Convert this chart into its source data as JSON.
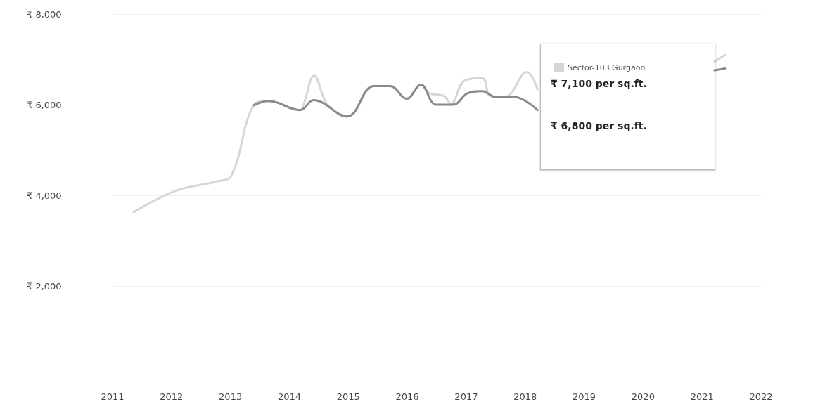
{
  "chart_data": {
    "type": "line",
    "series": [
      {
        "name": "Sector-103 Gurgaon",
        "color": "#d6d6d6",
        "x": [
          2011.36,
          2012.07,
          2012.78,
          2013.02,
          2013.4,
          2013.65,
          2014.18,
          2014.24,
          2014.42,
          2014.65,
          2014.98,
          2015.43,
          2015.71,
          2015.99,
          2016.23,
          2016.38,
          2016.62,
          2016.74,
          2016.97,
          2017.27,
          2017.41,
          2017.65,
          2018.03,
          2018.21,
          2019.5,
          2021.21,
          2021.39
        ],
        "values": [
          3630,
          4100,
          4310,
          4440,
          5990,
          6080,
          5880,
          6000,
          6640,
          5990,
          5740,
          6410,
          6410,
          6130,
          6440,
          6250,
          6190,
          6020,
          6530,
          6590,
          6190,
          6170,
          6720,
          6340,
          null,
          6950,
          7100
        ]
      },
      {
        "color": "#8a8a8a",
        "x": [
          2013.4,
          2013.65,
          2014.18,
          2014.41,
          2014.98,
          2015.43,
          2015.71,
          2015.99,
          2016.23,
          2016.49,
          2016.78,
          2017.02,
          2017.27,
          2017.5,
          2017.81,
          2018.21,
          2019.5,
          2021.21,
          2021.39
        ],
        "values": [
          5990,
          6080,
          5880,
          6100,
          5740,
          6410,
          6410,
          6130,
          6440,
          6000,
          6000,
          6250,
          6300,
          6170,
          6170,
          5880,
          null,
          6760,
          6800
        ]
      }
    ],
    "xlim": [
      2011,
      2022
    ],
    "xticks": [
      2011,
      2012,
      2013,
      2014,
      2015,
      2016,
      2017,
      2018,
      2019,
      2020,
      2021,
      2022
    ],
    "ylim": [
      0,
      8000
    ],
    "yticks": [
      {
        "value": 0,
        "label": null
      },
      {
        "value": 2000,
        "label": "₹ 2,000"
      },
      {
        "value": 4000,
        "label": "₹ 4,000"
      },
      {
        "value": 6000,
        "label": "₹ 6,000"
      },
      {
        "value": 8000,
        "label": "₹ 8,000"
      }
    ],
    "grid": "y",
    "legend": "top right",
    "marker": "none",
    "line_style": "solid",
    "annotations": [
      "₹ 7,100 per sq.ft.",
      "₹ 6,800 per sq.ft."
    ]
  }
}
